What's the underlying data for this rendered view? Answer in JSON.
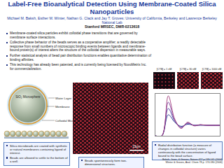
{
  "header": {
    "title": "Label-Free Bioanalytical Detection Using Membrane-Coated Silica Nanoparticles",
    "authors": "Michael M. Baksh, Esther M. Winter, Nathan G. Clack and Jay T. Groves: University of California, Berkeley and Lawrence Berkeley National Lab",
    "grant": "Stanford MRSEC, DMR-0213618"
  },
  "bullets": [
    "Membrane-coated silica particles exhibit colloidal phase transitions that are governed by membrane surface interactions.",
    "Collective phase behavior of the beads serves as a cooperative amplifier; a readily detectable response from small numbers of microscopic binding events between ligands and membrane-bound protein(s) of interest alters the structure of the colloidal dispersion in measurable ways.",
    "Further statistical analysis of bead pair distribution functions enables quantitative determination of binding affinities.",
    "This technology has already been patented, and is currently being licensed by NuvoMetrix Inc. for commercialization."
  ],
  "diagram": {
    "labels": [
      "SiO₂ Microsphere",
      "Water Layer",
      "Membrane",
      "Colloidal Microsphere"
    ],
    "caption": [
      "Silica microbeads are coated with synthetic or natural membranes containing ligand of interest.",
      "Beads are allowed to settle to the bottom of a well."
    ]
  },
  "micrograph": {
    "scale_bar": "15μm",
    "caption": "Beads spontaneously form two-dimensional structures."
  },
  "panels": [
    "[CTB] = 1 nM",
    "[CTB] = 30 nM",
    "[CTB] = 1000 nM"
  ],
  "chart_data": {
    "type": "line",
    "x": [
      0,
      1,
      2,
      3,
      4,
      5,
      6,
      7,
      8,
      9,
      10
    ],
    "series": [
      {
        "color": "#1a2a8a",
        "values": [
          0,
          0,
          2.0,
          1.3,
          0.9,
          1.1,
          1.0,
          1.0,
          1.0,
          1.0,
          1.0
        ]
      },
      {
        "color": "#4a3aa0",
        "values": [
          0,
          0,
          2.6,
          1.4,
          0.8,
          1.2,
          1.0,
          1.05,
          1.0,
          1.0,
          1.0
        ]
      },
      {
        "color": "#7a3a9a",
        "values": [
          0,
          0,
          3.2,
          1.5,
          0.8,
          1.2,
          1.0,
          1.05,
          1.0,
          1.0,
          1.0
        ]
      },
      {
        "color": "#a03a7a",
        "values": [
          0,
          0,
          3.8,
          1.6,
          0.7,
          1.3,
          0.95,
          1.05,
          1.0,
          1.0,
          1.0
        ]
      }
    ],
    "xlim": [
      0,
      10
    ],
    "ylim": [
      0,
      4
    ],
    "grid": false,
    "tick_labels": false
  },
  "chart_caption": "Radial distribution function (a measure of changes in colloidal structure) varies continuously with the concentration of ligand bound to the bead surface.",
  "references": [
    "Baksh, Jaros, & Groves, Nature 427 p.139-141 (2004)",
    "Winter & Groves, Anal. Chem 78 p. 174-180 (2006)"
  ]
}
